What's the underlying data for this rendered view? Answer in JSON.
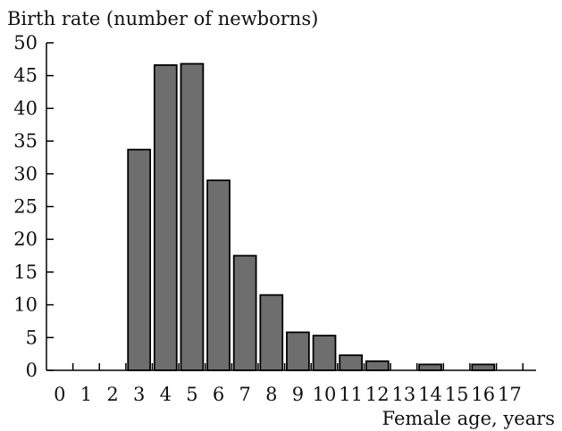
{
  "chart_data": {
    "type": "bar",
    "ylabel": "Birth rate (number of newborns)",
    "xlabel": "Female age, years",
    "x_ticks": [
      "0",
      "1",
      "2",
      "3",
      "4",
      "5",
      "6",
      "7",
      "8",
      "9",
      "10",
      "11",
      "12",
      "13",
      "14",
      "15",
      "16",
      "17"
    ],
    "y_ticks": [
      "0",
      "5",
      "10",
      "15",
      "20",
      "25",
      "30",
      "35",
      "40",
      "45",
      "50"
    ],
    "categories": [
      "3",
      "4",
      "5",
      "6",
      "7",
      "8",
      "9",
      "10",
      "11",
      "12",
      "14",
      "16"
    ],
    "values": [
      33.7,
      46.6,
      46.8,
      29.0,
      17.5,
      11.5,
      5.8,
      5.3,
      2.3,
      1.4,
      0.9,
      0.9
    ],
    "ylim": [
      0,
      50
    ],
    "xlim": [
      0,
      17
    ],
    "grid": false,
    "legend": "none",
    "colors": {
      "bar_fill": "#6e6e6e",
      "bar_stroke": "#000000",
      "axis": "#000000",
      "text": "#111111"
    }
  }
}
